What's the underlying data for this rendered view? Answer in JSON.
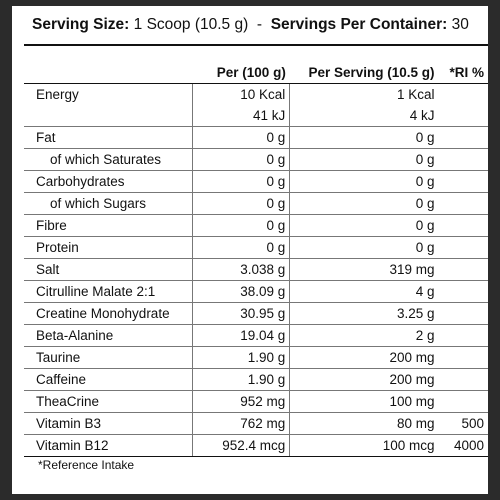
{
  "header": {
    "serving_size_label": "Serving Size:",
    "serving_size_value": "1 Scoop (10.5 g)",
    "separator": "-",
    "servings_label": "Servings Per Container:",
    "servings_value": "30"
  },
  "table": {
    "columns": [
      "",
      "Per (100 g)",
      "Per Serving (10.5 g)",
      "*RI %"
    ],
    "rows": [
      {
        "name": "Energy",
        "per100": "10 Kcal",
        "per_serving": "1 Kcal",
        "ri": ""
      },
      {
        "name": "",
        "per100": "41 kJ",
        "per_serving": "4 kJ",
        "ri": ""
      },
      {
        "name": "Fat",
        "per100": "0 g",
        "per_serving": "0 g",
        "ri": ""
      },
      {
        "name": "of which Saturates",
        "per100": "0 g",
        "per_serving": "0 g",
        "ri": ""
      },
      {
        "name": "Carbohydrates",
        "per100": "0 g",
        "per_serving": "0 g",
        "ri": ""
      },
      {
        "name": "of which Sugars",
        "per100": "0 g",
        "per_serving": "0 g",
        "ri": ""
      },
      {
        "name": "Fibre",
        "per100": "0 g",
        "per_serving": "0 g",
        "ri": ""
      },
      {
        "name": "Protein",
        "per100": "0 g",
        "per_serving": "0 g",
        "ri": ""
      },
      {
        "name": "Salt",
        "per100": "3.038 g",
        "per_serving": "319 mg",
        "ri": ""
      },
      {
        "name": "Citrulline Malate 2:1",
        "per100": "38.09 g",
        "per_serving": "4 g",
        "ri": ""
      },
      {
        "name": "Creatine Monohydrate",
        "per100": "30.95 g",
        "per_serving": "3.25 g",
        "ri": ""
      },
      {
        "name": "Beta-Alanine",
        "per100": "19.04 g",
        "per_serving": "2 g",
        "ri": ""
      },
      {
        "name": "Taurine",
        "per100": "1.90 g",
        "per_serving": "200 mg",
        "ri": ""
      },
      {
        "name": "Caffeine",
        "per100": "1.90 g",
        "per_serving": "200 mg",
        "ri": ""
      },
      {
        "name": "TheaCrine",
        "per100": "952 mg",
        "per_serving": "100 mg",
        "ri": ""
      },
      {
        "name": "Vitamin B3",
        "per100": "762 mg",
        "per_serving": "80 mg",
        "ri": "500"
      },
      {
        "name": "Vitamin B12",
        "per100": "952.4 mcg",
        "per_serving": "100 mcg",
        "ri": "4000"
      }
    ]
  },
  "footnote": "*Reference Intake"
}
